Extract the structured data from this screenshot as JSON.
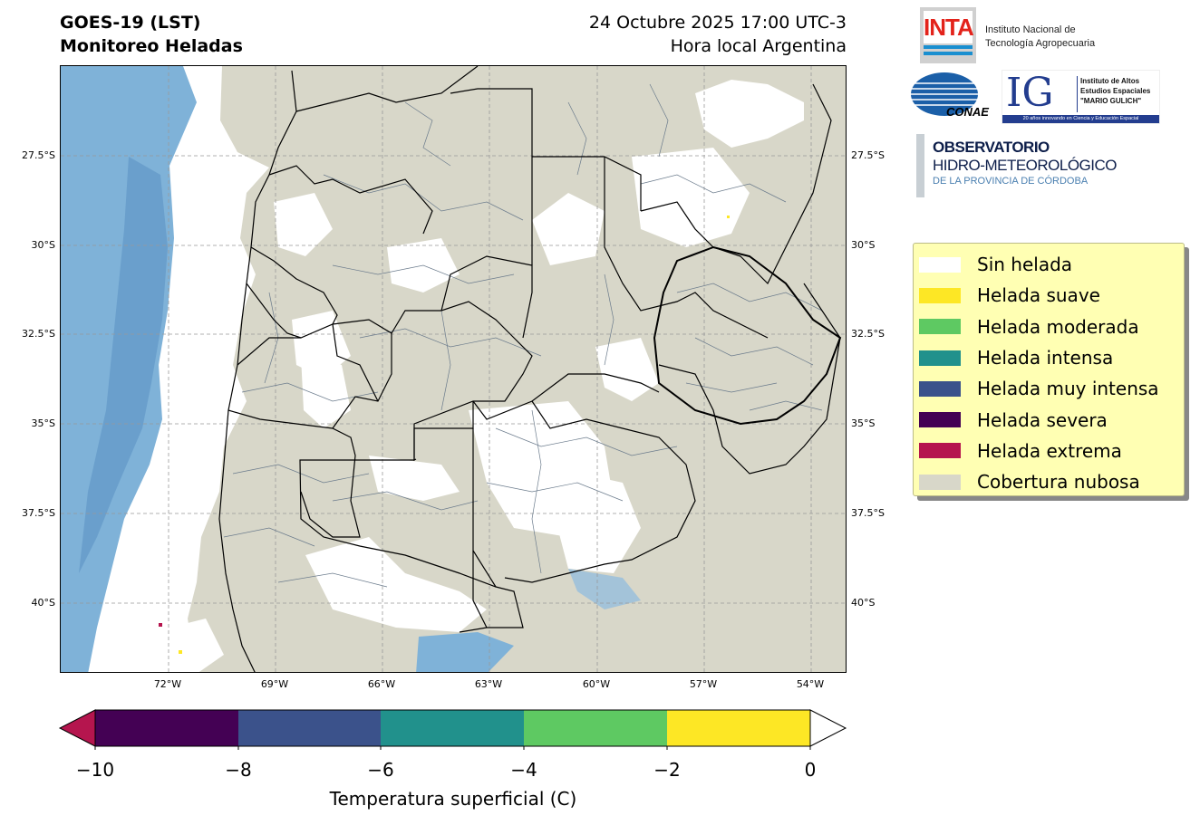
{
  "header": {
    "title_line1": "GOES-19 (LST)",
    "title_line2": "Monitoreo Heladas",
    "date_line": "24 Octubre 2025 17:00 UTC-3",
    "tz_line": "Hora local Argentina"
  },
  "map": {
    "lat_labels": [
      "27.5°S",
      "30°S",
      "32.5°S",
      "35°S",
      "37.5°S",
      "40°S"
    ],
    "lon_labels": [
      "72°W",
      "69°W",
      "66°W",
      "63°W",
      "60°W",
      "57°W",
      "54°W"
    ]
  },
  "logos": {
    "inta_mark": "INTA",
    "inta_line1": "Instituto Nacional de",
    "inta_line2": "Tecnología Agropecuaria",
    "conae_mark": "CONAE",
    "ig_mark": "IG",
    "ig_line1": "Instituto de Altos",
    "ig_line2": "Estudios Espaciales",
    "ig_line3": "\"MARIO GULICH\"",
    "ig_footer": "20 años innovando en Ciencia y Educación Espacial",
    "obs_line1": "OBSERVATORIO",
    "obs_line2": "HIDRO-METEOROLÓGICO",
    "obs_line3": "DE LA PROVINCIA DE CÓRDOBA"
  },
  "legend": {
    "items": [
      {
        "label": "Sin helada",
        "color": "#ffffff"
      },
      {
        "label": "Helada suave",
        "color": "#fde725"
      },
      {
        "label": "Helada moderada",
        "color": "#5ec962"
      },
      {
        "label": "Helada intensa",
        "color": "#21918c"
      },
      {
        "label": "Helada muy intensa",
        "color": "#3b528b"
      },
      {
        "label": "Helada severa",
        "color": "#440154"
      },
      {
        "label": "Helada extrema",
        "color": "#b5154e"
      },
      {
        "label": "Cobertura nubosa",
        "color": "#d8d7c9"
      }
    ]
  },
  "colorbar": {
    "ticks": [
      "−10",
      "−8",
      "−6",
      "−4",
      "−2",
      "0"
    ],
    "label": "Temperatura superficial (C)",
    "segment_colors": [
      "#440154",
      "#3b528b",
      "#21918c",
      "#5ec962",
      "#fde725"
    ],
    "under_color": "#b5154e",
    "over_color": "#ffffff"
  }
}
